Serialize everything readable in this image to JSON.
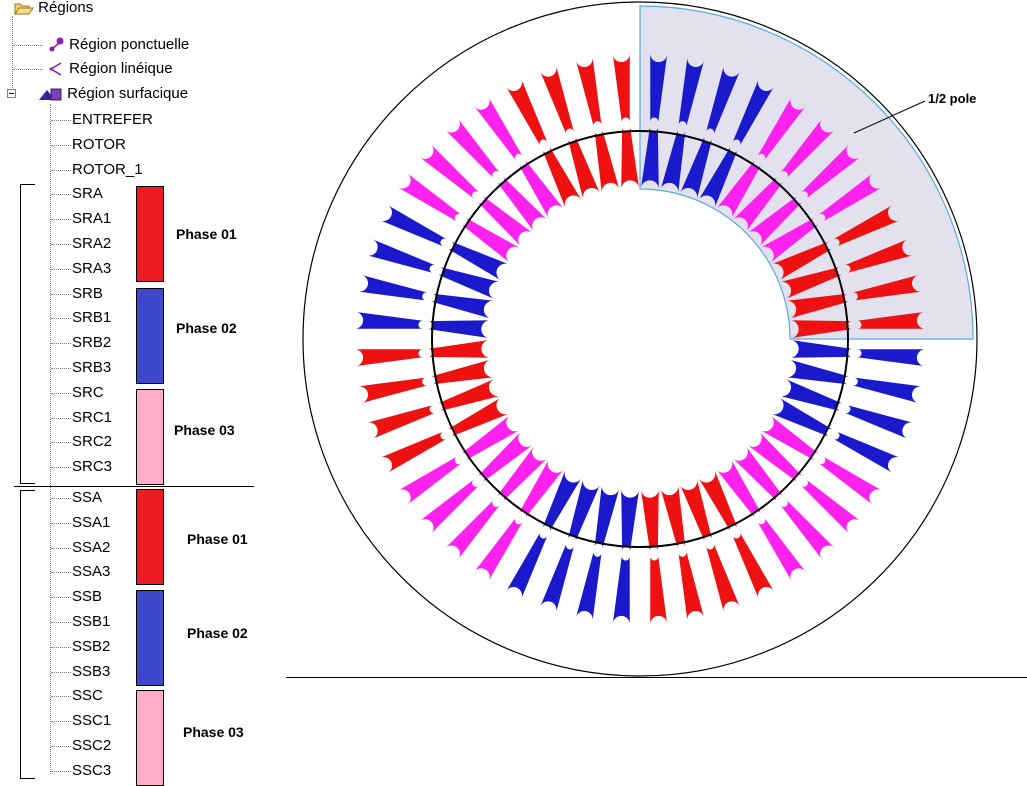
{
  "tree": {
    "root_label": "Régions",
    "children": [
      {
        "label": "Région ponctuelle",
        "icon": "point-region-icon"
      },
      {
        "label": "Région linéique",
        "icon": "line-region-icon"
      },
      {
        "label": "Région surfacique",
        "icon": "surface-region-icon"
      }
    ],
    "surface_regions": [
      "ENTREFER",
      "ROTOR",
      "ROTOR_1",
      "SRA",
      "SRA1",
      "SRA2",
      "SRA3",
      "SRB",
      "SRB1",
      "SRB2",
      "SRB3",
      "SRC",
      "SRC1",
      "SRC2",
      "SRC3",
      "SSA",
      "SSA1",
      "SSA2",
      "SSA3",
      "SSB",
      "SSB1",
      "SSB2",
      "SSB3",
      "SSC",
      "SSC1",
      "SSC2",
      "SSC3"
    ]
  },
  "phase_groups": [
    {
      "label": "Phase 01",
      "color": "#ed1c24"
    },
    {
      "label": "Phase 02",
      "color": "#3f48cc"
    },
    {
      "label": "Phase 03",
      "color": "#ffaec9"
    },
    {
      "label": "Phase 01",
      "color": "#ed1c24"
    },
    {
      "label": "Phase 02",
      "color": "#3f48cc"
    },
    {
      "label": "Phase 03",
      "color": "#ffaec9"
    }
  ],
  "diagram": {
    "annotation": "1/2 pole",
    "colors": {
      "red": "#ee1111",
      "blue": "#1a1acc",
      "magenta": "#ff22ee",
      "highlight": "#e4e1ef",
      "highlight_border": "#55aadd"
    }
  }
}
